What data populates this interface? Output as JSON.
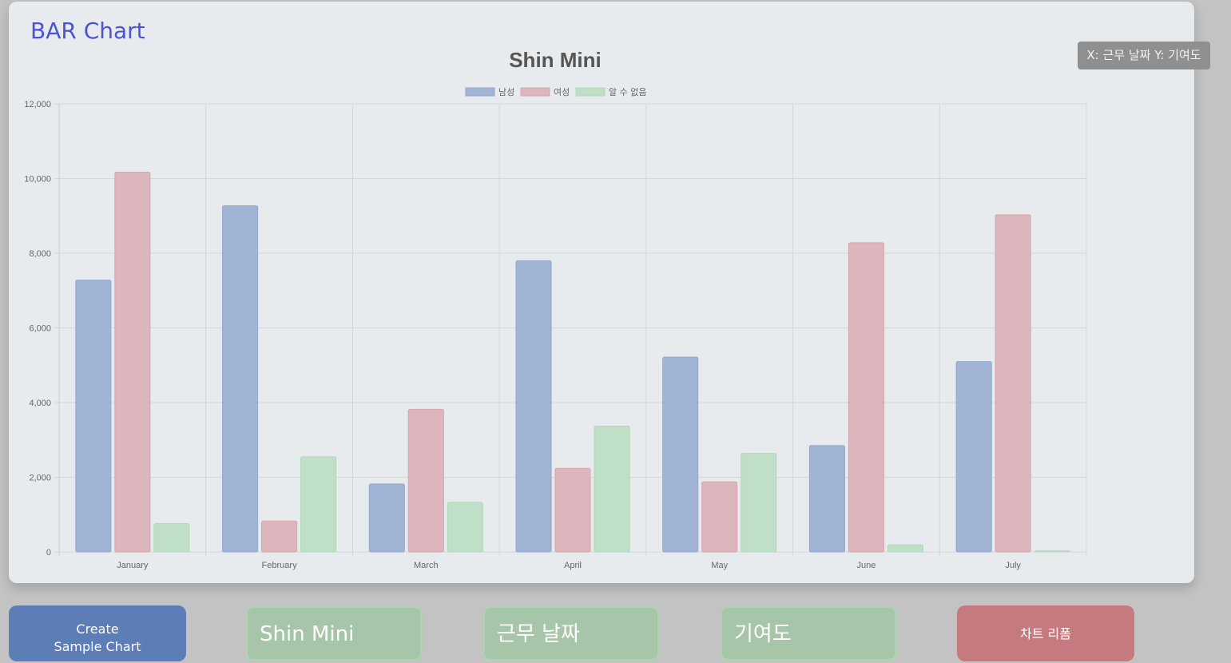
{
  "header": {
    "app_title": "BAR Chart"
  },
  "tooltip": {
    "axis_info": "X: 근무 날짜 Y: 기여도"
  },
  "buttons": {
    "create_line1": "Create",
    "create_line2": "Sample Chart",
    "title_input": "Shin Mini",
    "xlabel_input": "근무 날짜",
    "ylabel_input": "기여도",
    "reform": "차트 리폼"
  },
  "chart_data": {
    "type": "bar",
    "title": "Shin Mini",
    "xlabel": "",
    "ylabel": "",
    "categories": [
      "January",
      "February",
      "March",
      "April",
      "May",
      "June",
      "July"
    ],
    "series": [
      {
        "name": "남성",
        "values": [
          7280,
          9270,
          1820,
          7800,
          5220,
          2850,
          5100
        ]
      },
      {
        "name": "여성",
        "values": [
          10170,
          830,
          3820,
          2240,
          1880,
          8280,
          9030
        ]
      },
      {
        "name": "알 수 없음",
        "values": [
          760,
          2550,
          1330,
          3370,
          2640,
          190,
          30
        ]
      }
    ],
    "ylim": [
      0,
      12000
    ],
    "yticks": [
      "0",
      "2,000",
      "4,000",
      "6,000",
      "8,000",
      "10,000",
      "12,000"
    ],
    "grid": true,
    "legend_position": "top-center",
    "colors": {
      "남성": "#a1b4d6",
      "여성": "#dcb6bc",
      "알 수 없음": "#bfe0c6"
    },
    "border_colors": {
      "남성": "#93a8cf",
      "여성": "#d3a7ae",
      "알 수 없음": "#b0d8bb"
    }
  }
}
